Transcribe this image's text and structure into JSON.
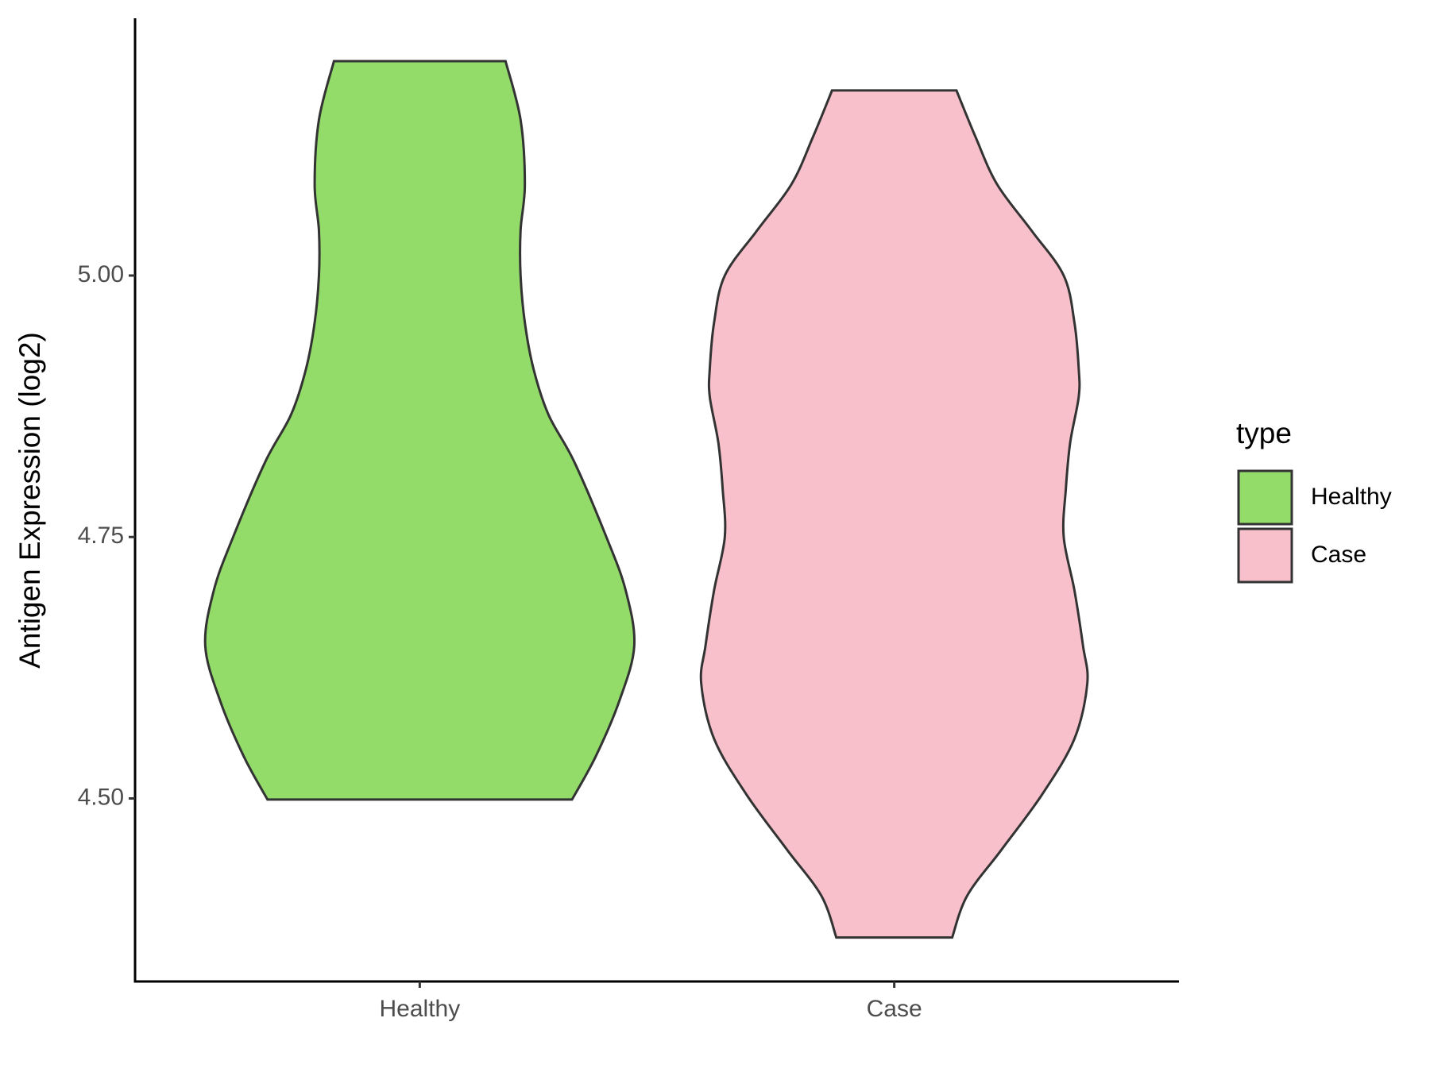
{
  "chart_data": {
    "type": "violin",
    "y_label": "Antigen Expression (log2)",
    "legend_title": "type",
    "categories": [
      "Healthy",
      "Case"
    ],
    "ylim": [
      4.325,
      5.246
    ],
    "yticks": [
      {
        "value": 4.5,
        "label": "4.50"
      },
      {
        "value": 4.75,
        "label": "4.75"
      },
      {
        "value": 5.0,
        "label": "5.00"
      }
    ],
    "series": [
      {
        "name": "Healthy",
        "color": "#93dc6a",
        "values": [
          5.205,
          5.149,
          5.087,
          5.043,
          5.0,
          4.955,
          4.911,
          4.867,
          4.822,
          4.75,
          4.699,
          4.646,
          4.593,
          4.54,
          4.499
        ],
        "density": [
          0.4,
          0.47,
          0.49,
          0.47,
          0.47,
          0.49,
          0.53,
          0.6,
          0.72,
          0.87,
          0.96,
          1.0,
          0.93,
          0.82,
          0.71
        ]
      },
      {
        "name": "Case",
        "color": "#f7c0cb",
        "values": [
          5.177,
          5.132,
          5.087,
          5.043,
          5.0,
          4.955,
          4.911,
          4.884,
          4.84,
          4.796,
          4.75,
          4.699,
          4.646,
          4.61,
          4.557,
          4.504,
          4.451,
          4.407,
          4.367
        ],
        "density": [
          0.29,
          0.38,
          0.48,
          0.64,
          0.79,
          0.84,
          0.86,
          0.86,
          0.82,
          0.8,
          0.79,
          0.84,
          0.88,
          0.9,
          0.84,
          0.69,
          0.5,
          0.34,
          0.27
        ]
      }
    ]
  }
}
